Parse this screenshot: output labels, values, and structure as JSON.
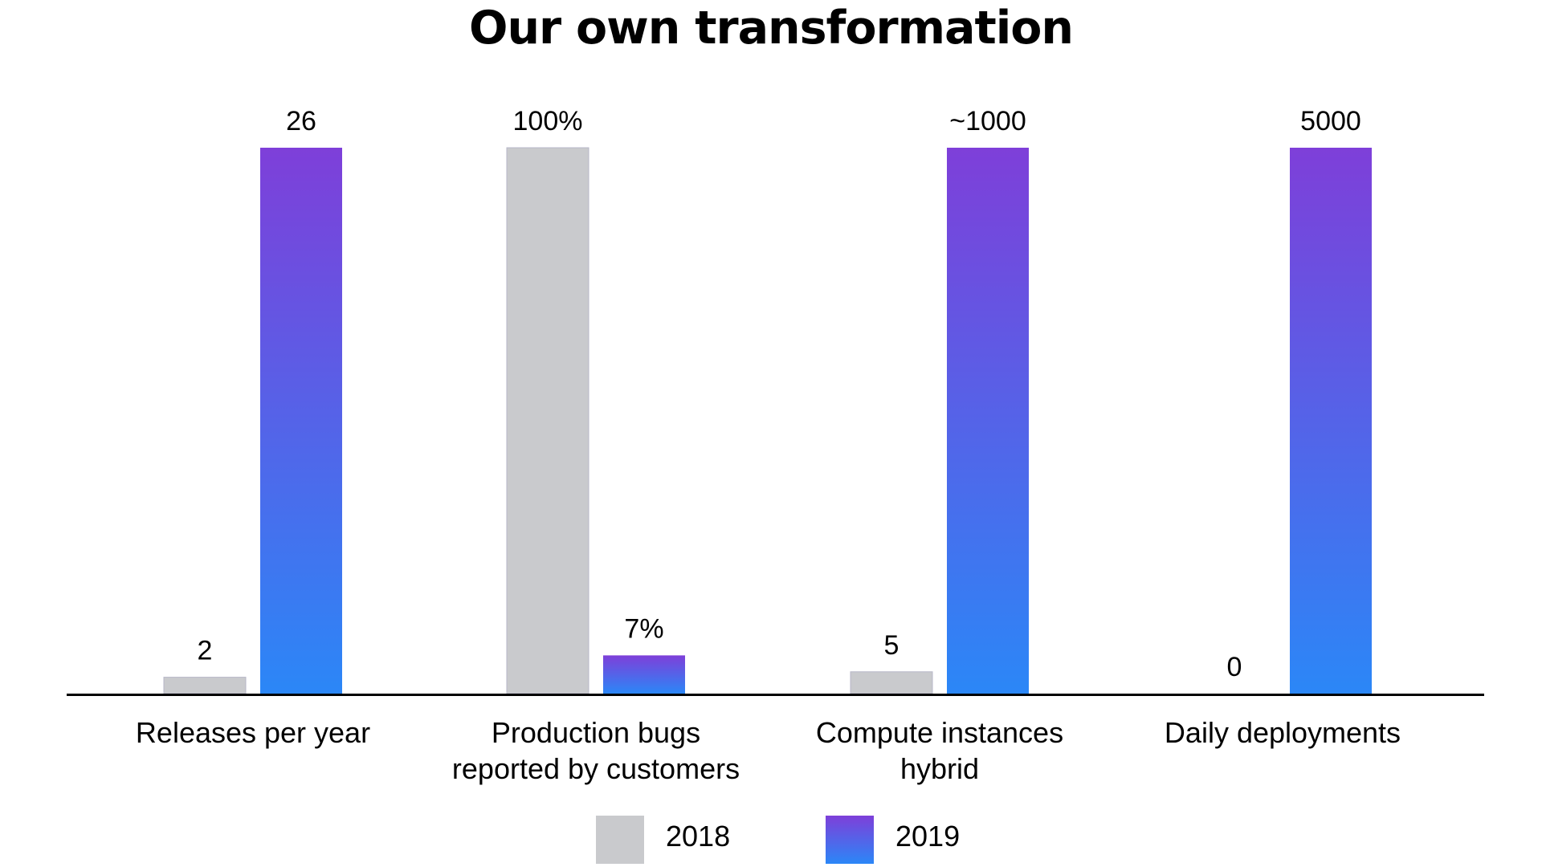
{
  "chart_data": {
    "type": "bar",
    "title": "Our own transformation",
    "categories": [
      [
        "Releases per year"
      ],
      [
        "Production bugs",
        "reported by customers"
      ],
      [
        "Compute instances",
        "hybrid"
      ],
      [
        "Daily deployments"
      ]
    ],
    "series": [
      {
        "name": "2018",
        "color": "#c9cacd",
        "values": [
          2,
          100,
          5,
          0
        ],
        "value_labels": [
          "2",
          "100%",
          "5",
          "0"
        ],
        "relative_height": [
          0.03,
          1.0,
          0.04,
          0.0
        ]
      },
      {
        "name": "2019",
        "gradient": [
          "#7e3fd9",
          "#2b87f7"
        ],
        "values": [
          26,
          7,
          1000,
          5000
        ],
        "value_labels": [
          "26",
          "7%",
          "~1000",
          "5000"
        ],
        "relative_height": [
          1.0,
          0.07,
          1.0,
          1.0
        ]
      }
    ],
    "legend_position": "bottom-center",
    "grid": false,
    "axes_ticks": false
  }
}
